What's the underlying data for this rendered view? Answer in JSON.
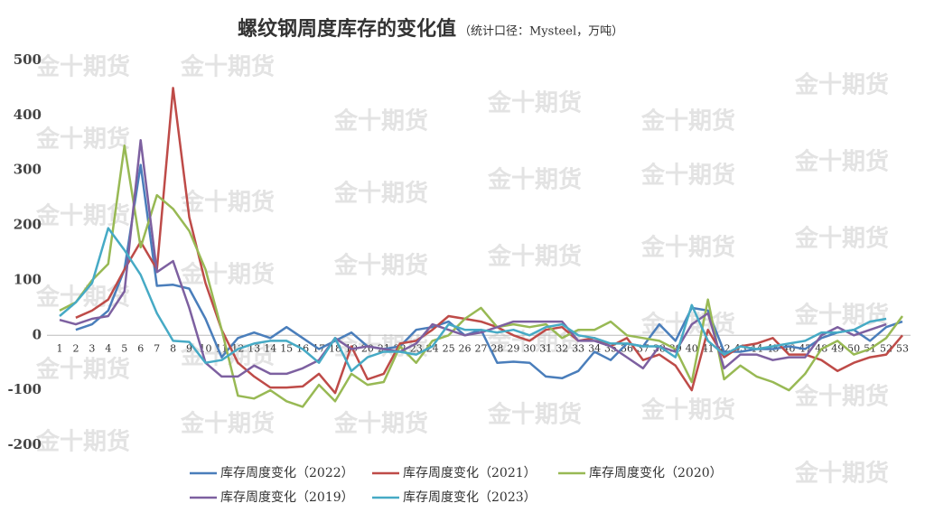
{
  "chart_data": {
    "type": "line",
    "title": "螺纹钢周度库存的变化值",
    "subtitle": "（统计口径：Mysteel，万吨）",
    "watermark": "金十期货",
    "categories": [
      1,
      2,
      3,
      4,
      5,
      6,
      7,
      8,
      9,
      10,
      11,
      12,
      13,
      14,
      15,
      16,
      17,
      18,
      19,
      20,
      21,
      22,
      23,
      24,
      25,
      26,
      27,
      28,
      29,
      30,
      31,
      32,
      33,
      34,
      35,
      36,
      37,
      38,
      39,
      40,
      41,
      42,
      43,
      44,
      45,
      46,
      47,
      48,
      49,
      50,
      51,
      52,
      53
    ],
    "ylim": [
      -200,
      500
    ],
    "yticks": [
      -200,
      -100,
      0,
      100,
      200,
      300,
      400,
      500
    ],
    "series": [
      {
        "name": "库存周度变化（2022）",
        "color": "#4a7ebb",
        "values": [
          null,
          10,
          20,
          45,
          120,
          310,
          90,
          92,
          85,
          30,
          -40,
          -5,
          5,
          -5,
          15,
          -5,
          -25,
          -10,
          5,
          -20,
          -25,
          -20,
          10,
          15,
          25,
          0,
          10,
          -50,
          -48,
          -50,
          -75,
          -78,
          -65,
          -30,
          -45,
          -15,
          -20,
          20,
          -10,
          50,
          45,
          -30,
          -30,
          -25,
          -25,
          -20,
          -25,
          -5,
          5,
          10,
          -10,
          15,
          25
        ]
      },
      {
        "name": "库存周度变化（2021）",
        "color": "#be4b48",
        "values": [
          null,
          32,
          45,
          65,
          120,
          170,
          120,
          450,
          215,
          95,
          10,
          -50,
          -75,
          -95,
          -95,
          -93,
          -70,
          -105,
          -20,
          -80,
          -70,
          -15,
          -10,
          10,
          35,
          30,
          25,
          15,
          0,
          -10,
          10,
          15,
          -10,
          -5,
          -20,
          -5,
          -45,
          -35,
          -55,
          -100,
          10,
          -40,
          -20,
          -15,
          -5,
          -35,
          -35,
          -45,
          -65,
          -50,
          -40,
          -35,
          0
        ]
      },
      {
        "name": "库存周度变化（2020）",
        "color": "#98b954",
        "values": [
          45,
          60,
          100,
          130,
          345,
          160,
          255,
          230,
          190,
          120,
          10,
          -110,
          -115,
          -100,
          -120,
          -130,
          -90,
          -120,
          -70,
          -90,
          -85,
          -20,
          -50,
          -10,
          0,
          30,
          50,
          15,
          20,
          15,
          20,
          -5,
          10,
          10,
          25,
          0,
          -5,
          -10,
          -25,
          -85,
          65,
          -80,
          -55,
          -75,
          -85,
          -100,
          -70,
          -25,
          -10,
          -35,
          -25,
          -5,
          35
        ]
      },
      {
        "name": "库存周度变化（2019）",
        "color": "#7d60a0",
        "values": [
          28,
          20,
          30,
          35,
          80,
          355,
          115,
          135,
          50,
          -50,
          -75,
          -75,
          -55,
          -70,
          -70,
          -60,
          -45,
          -5,
          -25,
          -20,
          -25,
          -30,
          -15,
          20,
          10,
          0,
          5,
          15,
          25,
          25,
          25,
          25,
          -10,
          -10,
          -20,
          -40,
          -60,
          -20,
          -30,
          20,
          40,
          -60,
          -35,
          -35,
          -45,
          -40,
          -40,
          0,
          15,
          0,
          10,
          20,
          null
        ]
      },
      {
        "name": "库存周度变化（2023）",
        "color": "#46aac5",
        "values": [
          35,
          60,
          95,
          195,
          155,
          110,
          40,
          -10,
          -12,
          -50,
          -45,
          -25,
          -15,
          -10,
          -10,
          -25,
          -50,
          -5,
          -65,
          -40,
          -30,
          -30,
          -35,
          -20,
          20,
          10,
          10,
          5,
          10,
          0,
          15,
          20,
          0,
          -5,
          -15,
          -15,
          -20,
          -20,
          -40,
          55,
          -10,
          -35,
          -20,
          -25,
          -20,
          -15,
          -10,
          5,
          5,
          10,
          25,
          30,
          null
        ]
      }
    ]
  }
}
